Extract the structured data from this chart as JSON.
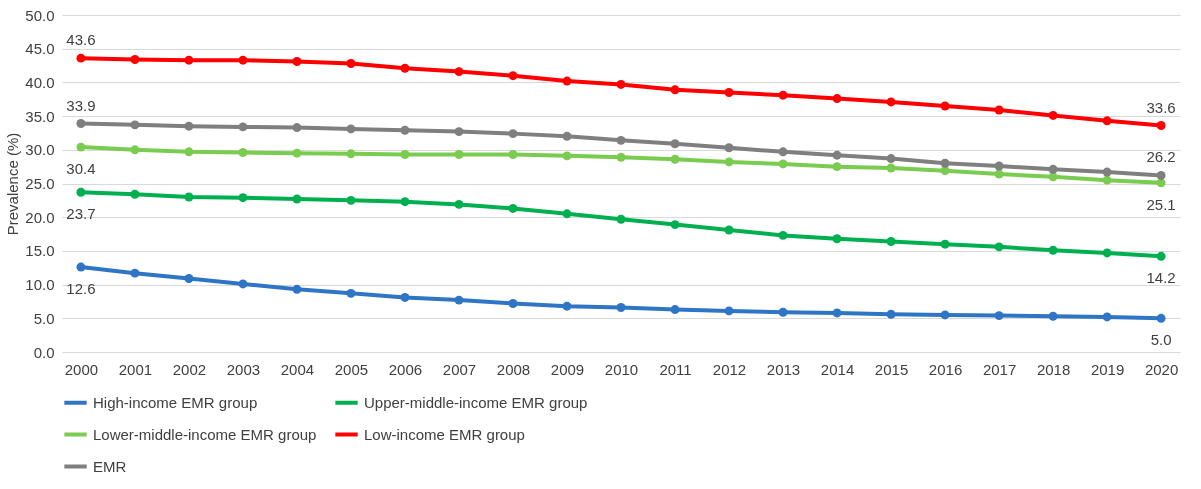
{
  "chart_data": {
    "type": "line",
    "ylabel": "Prevalence (%)",
    "categories": [
      "2000",
      "2001",
      "2002",
      "2003",
      "2004",
      "2005",
      "2006",
      "2007",
      "2008",
      "2009",
      "2010",
      "2011",
      "2012",
      "2013",
      "2014",
      "2015",
      "2016",
      "2017",
      "2018",
      "2019",
      "2020"
    ],
    "series": [
      {
        "name": "High-income EMR group",
        "color": "#2e75c6",
        "values": [
          12.6,
          11.7,
          10.9,
          10.1,
          9.3,
          8.7,
          8.1,
          7.7,
          7.2,
          6.8,
          6.6,
          6.3,
          6.1,
          5.9,
          5.8,
          5.6,
          5.5,
          5.4,
          5.3,
          5.2,
          5.0
        ],
        "value_labels": [
          "12.6",
          null,
          null,
          null,
          null,
          null,
          null,
          null,
          null,
          null,
          null,
          null,
          null,
          null,
          null,
          null,
          null,
          null,
          null,
          null,
          "5.0"
        ]
      },
      {
        "name": "Upper-middle-income EMR group",
        "color": "#00b050",
        "values": [
          23.7,
          23.4,
          23.0,
          22.9,
          22.7,
          22.5,
          22.3,
          21.9,
          21.3,
          20.5,
          19.7,
          18.9,
          18.1,
          17.3,
          16.8,
          16.4,
          16.0,
          15.6,
          15.1,
          14.7,
          14.2
        ],
        "value_labels": [
          "23.7",
          null,
          null,
          null,
          null,
          null,
          null,
          null,
          null,
          null,
          null,
          null,
          null,
          null,
          null,
          null,
          null,
          null,
          null,
          null,
          "14.2"
        ]
      },
      {
        "name": "Lower-middle-income EMR group",
        "color": "#7acc50",
        "values": [
          30.4,
          30.0,
          29.7,
          29.6,
          29.5,
          29.4,
          29.3,
          29.3,
          29.3,
          29.1,
          28.9,
          28.6,
          28.2,
          27.9,
          27.5,
          27.3,
          26.9,
          26.4,
          26.0,
          25.5,
          25.1
        ],
        "value_labels": [
          "30.4",
          null,
          null,
          null,
          null,
          null,
          null,
          null,
          null,
          null,
          null,
          null,
          null,
          null,
          null,
          null,
          null,
          null,
          null,
          null,
          "25.1"
        ]
      },
      {
        "name": "Low-income EMR group",
        "color": "#ff0000",
        "values": [
          43.6,
          43.4,
          43.3,
          43.3,
          43.1,
          42.8,
          42.1,
          41.6,
          41.0,
          40.2,
          39.7,
          38.9,
          38.5,
          38.1,
          37.6,
          37.1,
          36.5,
          35.9,
          35.1,
          34.3,
          33.6
        ],
        "value_labels": [
          "43.6",
          null,
          null,
          null,
          null,
          null,
          null,
          null,
          null,
          null,
          null,
          null,
          null,
          null,
          null,
          null,
          null,
          null,
          null,
          null,
          "33.6"
        ]
      },
      {
        "name": "EMR",
        "color": "#7f7f7f",
        "values": [
          33.9,
          33.7,
          33.5,
          33.4,
          33.3,
          33.1,
          32.9,
          32.7,
          32.4,
          32.0,
          31.4,
          30.9,
          30.3,
          29.7,
          29.2,
          28.7,
          28.0,
          27.6,
          27.1,
          26.7,
          26.2
        ],
        "value_labels": [
          "33.9",
          null,
          null,
          null,
          null,
          null,
          null,
          null,
          null,
          null,
          null,
          null,
          null,
          null,
          null,
          null,
          null,
          null,
          null,
          null,
          "26.2"
        ]
      }
    ],
    "ylim": [
      0,
      50
    ],
    "yticks": [
      {
        "value": 0,
        "label": "0.0"
      },
      {
        "value": 5,
        "label": "5.0"
      },
      {
        "value": 10,
        "label": "10.0"
      },
      {
        "value": 15,
        "label": "15.0"
      },
      {
        "value": 20,
        "label": "20.0"
      },
      {
        "value": 25,
        "label": "25.0"
      },
      {
        "value": 30,
        "label": "30.0"
      },
      {
        "value": 35,
        "label": "35.0"
      },
      {
        "value": 40,
        "label": "40.0"
      },
      {
        "value": 45,
        "label": "45.0"
      },
      {
        "value": 50,
        "label": "50.0"
      }
    ],
    "grid": "y",
    "legend": "bottom",
    "marker": "circle",
    "line_style": "solid"
  }
}
